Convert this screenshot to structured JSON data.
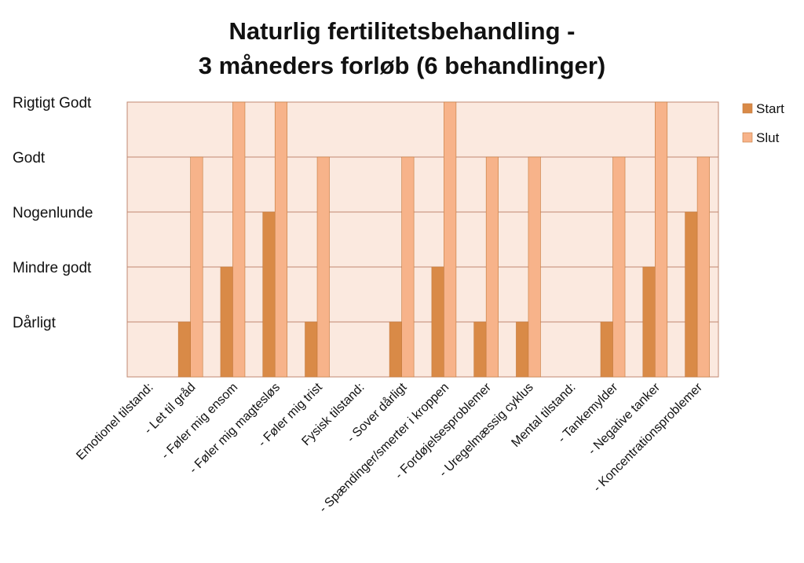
{
  "chart_data": {
    "type": "bar",
    "title": [
      "Naturlig fertilitetsbehandling -",
      "3 måneders forløb (6 behandlinger)"
    ],
    "xlabel": "",
    "ylabel": "",
    "y_levels": [
      "Dårligt",
      "Mindre godt",
      "Nogenlunde",
      "Godt",
      "Rigtigt Godt"
    ],
    "ylim": [
      0,
      5
    ],
    "grid": true,
    "legend_position": "right",
    "categories": [
      "Emotionel tilstand:",
      "- Let til gråd",
      "- Føler mig ensom",
      "- Føler mig magtesløs",
      "- Føler mig trist",
      "Fysisk tilstand:",
      "- Sover dårligt",
      "- Spændinger/smerter i kroppen",
      "- Fordøjelsesproblemer",
      "- Uregelmæssig cyklus",
      "Mental tilstand:",
      "- Tankemylder",
      "- Negative tanker",
      "- Koncentrationsproblemer"
    ],
    "series": [
      {
        "name": "Start",
        "color": "#d98a47",
        "values": [
          0,
          1,
          2,
          3,
          1,
          0,
          1,
          2,
          1,
          1,
          0,
          1,
          2,
          3
        ]
      },
      {
        "name": "Slut",
        "color": "#f7b38a",
        "values": [
          0,
          4,
          5,
          5,
          4,
          0,
          4,
          5,
          4,
          4,
          0,
          4,
          5,
          4
        ]
      }
    ],
    "colors": {
      "plot_background": "#fbe9df",
      "gridline": "#c08870",
      "bar_edge": "#c47a3c"
    }
  }
}
